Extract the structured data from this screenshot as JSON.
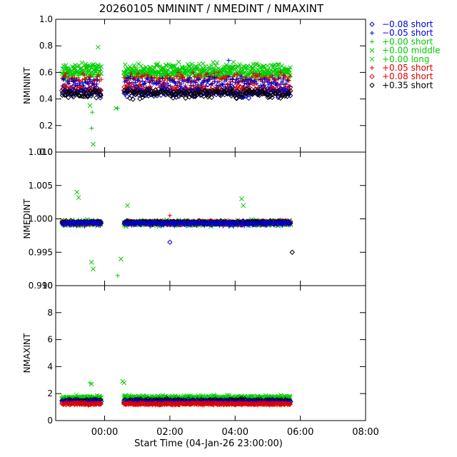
{
  "chart_data": {
    "type": "scatter",
    "title": "20260105 NMININT / NMEDINT / NMAXINT",
    "xlabel": "Start Time (04-Jan-26 23:00:00)",
    "x_unit": "hours",
    "xlim": [
      -0.5,
      9.0
    ],
    "x_ticks": [
      {
        "value": 1,
        "label": "00:00"
      },
      {
        "value": 3,
        "label": "02:00"
      },
      {
        "value": 5,
        "label": "04:00"
      },
      {
        "value": 7,
        "label": "06:00"
      },
      {
        "value": 9,
        "label": "08:00"
      }
    ],
    "grid": false,
    "legend_position": "right",
    "legend": [
      {
        "label": "−0.08 short",
        "color": "#0000cc",
        "marker": "diamond"
      },
      {
        "label": "−0.05 short",
        "color": "#0000cc",
        "marker": "plus"
      },
      {
        "label": "+0.00 short",
        "color": "#00cc00",
        "marker": "plus"
      },
      {
        "label": "+0.00 middle",
        "color": "#00cc00",
        "marker": "cross"
      },
      {
        "label": "+0.00 long",
        "color": "#00cc00",
        "marker": "cross"
      },
      {
        "label": "+0.05 short",
        "color": "#dd0000",
        "marker": "plus"
      },
      {
        "label": "+0.08 short",
        "color": "#dd0000",
        "marker": "diamond"
      },
      {
        "label": "+0.35 short",
        "color": "#000000",
        "marker": "diamond"
      }
    ],
    "data_windows": [
      [
        -0.3,
        0.9
      ],
      [
        1.6,
        6.7
      ]
    ],
    "panels": [
      {
        "ylabel": "NMININT",
        "ylim": [
          0.0,
          1.0
        ],
        "y_ticks": [
          "0.0",
          "0.2",
          "0.4",
          "0.6",
          "0.8",
          "1.0"
        ],
        "y_tick_values": [
          0.0,
          0.2,
          0.4,
          0.6,
          0.8,
          1.0
        ],
        "series": [
          {
            "legend_index": 4,
            "center": 0.63,
            "spread": 0.06
          },
          {
            "legend_index": 3,
            "center": 0.6,
            "spread": 0.06
          },
          {
            "legend_index": 2,
            "center": 0.58,
            "spread": 0.05
          },
          {
            "legend_index": 5,
            "center": 0.55,
            "spread": 0.06
          },
          {
            "legend_index": 1,
            "center": 0.52,
            "spread": 0.07
          },
          {
            "legend_index": 6,
            "center": 0.47,
            "spread": 0.05
          },
          {
            "legend_index": 0,
            "center": 0.45,
            "spread": 0.06
          },
          {
            "legend_index": 7,
            "center": 0.44,
            "spread": 0.05
          }
        ],
        "outliers": [
          {
            "x": 0.65,
            "y": 0.06,
            "legend_index": 4
          },
          {
            "x": 0.6,
            "y": 0.18,
            "legend_index": 2
          },
          {
            "x": 0.62,
            "y": 0.3,
            "legend_index": 2
          },
          {
            "x": 0.55,
            "y": 0.35,
            "legend_index": 3
          },
          {
            "x": 0.8,
            "y": 0.79,
            "legend_index": 4
          },
          {
            "x": 1.35,
            "y": 0.33,
            "legend_index": 4
          },
          {
            "x": 1.4,
            "y": 0.33,
            "legend_index": 2
          },
          {
            "x": 4.8,
            "y": 0.69,
            "legend_index": 1
          }
        ]
      },
      {
        "ylabel": "NMEDINT",
        "ylim": [
          0.99,
          1.01
        ],
        "y_ticks": [
          "0.990",
          "0.995",
          "1.000",
          "1.005",
          "1.010"
        ],
        "y_tick_values": [
          0.99,
          0.995,
          1.0,
          1.005,
          1.01
        ],
        "series": [
          {
            "legend_index": 4,
            "center": 0.9994,
            "spread": 0.0006
          },
          {
            "legend_index": 3,
            "center": 0.9993,
            "spread": 0.0005
          },
          {
            "legend_index": 2,
            "center": 0.9993,
            "spread": 0.0004
          },
          {
            "legend_index": 1,
            "center": 0.9992,
            "spread": 0.0004
          },
          {
            "legend_index": 5,
            "center": 0.9993,
            "spread": 0.0003
          },
          {
            "legend_index": 6,
            "center": 0.9995,
            "spread": 0.0003
          },
          {
            "legend_index": 7,
            "center": 0.9995,
            "spread": 0.0003
          },
          {
            "legend_index": 0,
            "center": 0.9994,
            "spread": 0.0003
          }
        ],
        "outliers": [
          {
            "x": 0.15,
            "y": 1.004,
            "legend_index": 4
          },
          {
            "x": 0.2,
            "y": 1.0032,
            "legend_index": 3
          },
          {
            "x": 0.6,
            "y": 0.9935,
            "legend_index": 4
          },
          {
            "x": 0.65,
            "y": 0.9925,
            "legend_index": 4
          },
          {
            "x": 1.4,
            "y": 0.9915,
            "legend_index": 2
          },
          {
            "x": 1.5,
            "y": 0.994,
            "legend_index": 4
          },
          {
            "x": 1.7,
            "y": 1.002,
            "legend_index": 4
          },
          {
            "x": 3.0,
            "y": 0.9965,
            "legend_index": 0
          },
          {
            "x": 3.0,
            "y": 1.0005,
            "legend_index": 5
          },
          {
            "x": 5.2,
            "y": 1.003,
            "legend_index": 4
          },
          {
            "x": 5.25,
            "y": 1.002,
            "legend_index": 3
          },
          {
            "x": 6.75,
            "y": 0.995,
            "legend_index": 7
          }
        ]
      },
      {
        "ylabel": "NMAXINT",
        "ylim": [
          0,
          10
        ],
        "y_ticks": [
          "0",
          "2",
          "4",
          "6",
          "8",
          "10"
        ],
        "y_tick_values": [
          0,
          2,
          4,
          6,
          8,
          10
        ],
        "series": [
          {
            "legend_index": 4,
            "center": 1.75,
            "spread": 0.18
          },
          {
            "legend_index": 3,
            "center": 1.65,
            "spread": 0.15
          },
          {
            "legend_index": 2,
            "center": 1.6,
            "spread": 0.15
          },
          {
            "legend_index": 7,
            "center": 1.5,
            "spread": 0.15
          },
          {
            "legend_index": 0,
            "center": 1.4,
            "spread": 0.12
          },
          {
            "legend_index": 1,
            "center": 1.35,
            "spread": 0.12
          },
          {
            "legend_index": 6,
            "center": 1.25,
            "spread": 0.1
          },
          {
            "legend_index": 5,
            "center": 1.2,
            "spread": 0.1
          }
        ],
        "outliers": [
          {
            "x": 0.55,
            "y": 2.8,
            "legend_index": 2
          },
          {
            "x": 0.6,
            "y": 2.7,
            "legend_index": 4
          },
          {
            "x": 1.55,
            "y": 2.9,
            "legend_index": 4
          },
          {
            "x": 1.6,
            "y": 2.8,
            "legend_index": 4
          }
        ]
      }
    ]
  }
}
